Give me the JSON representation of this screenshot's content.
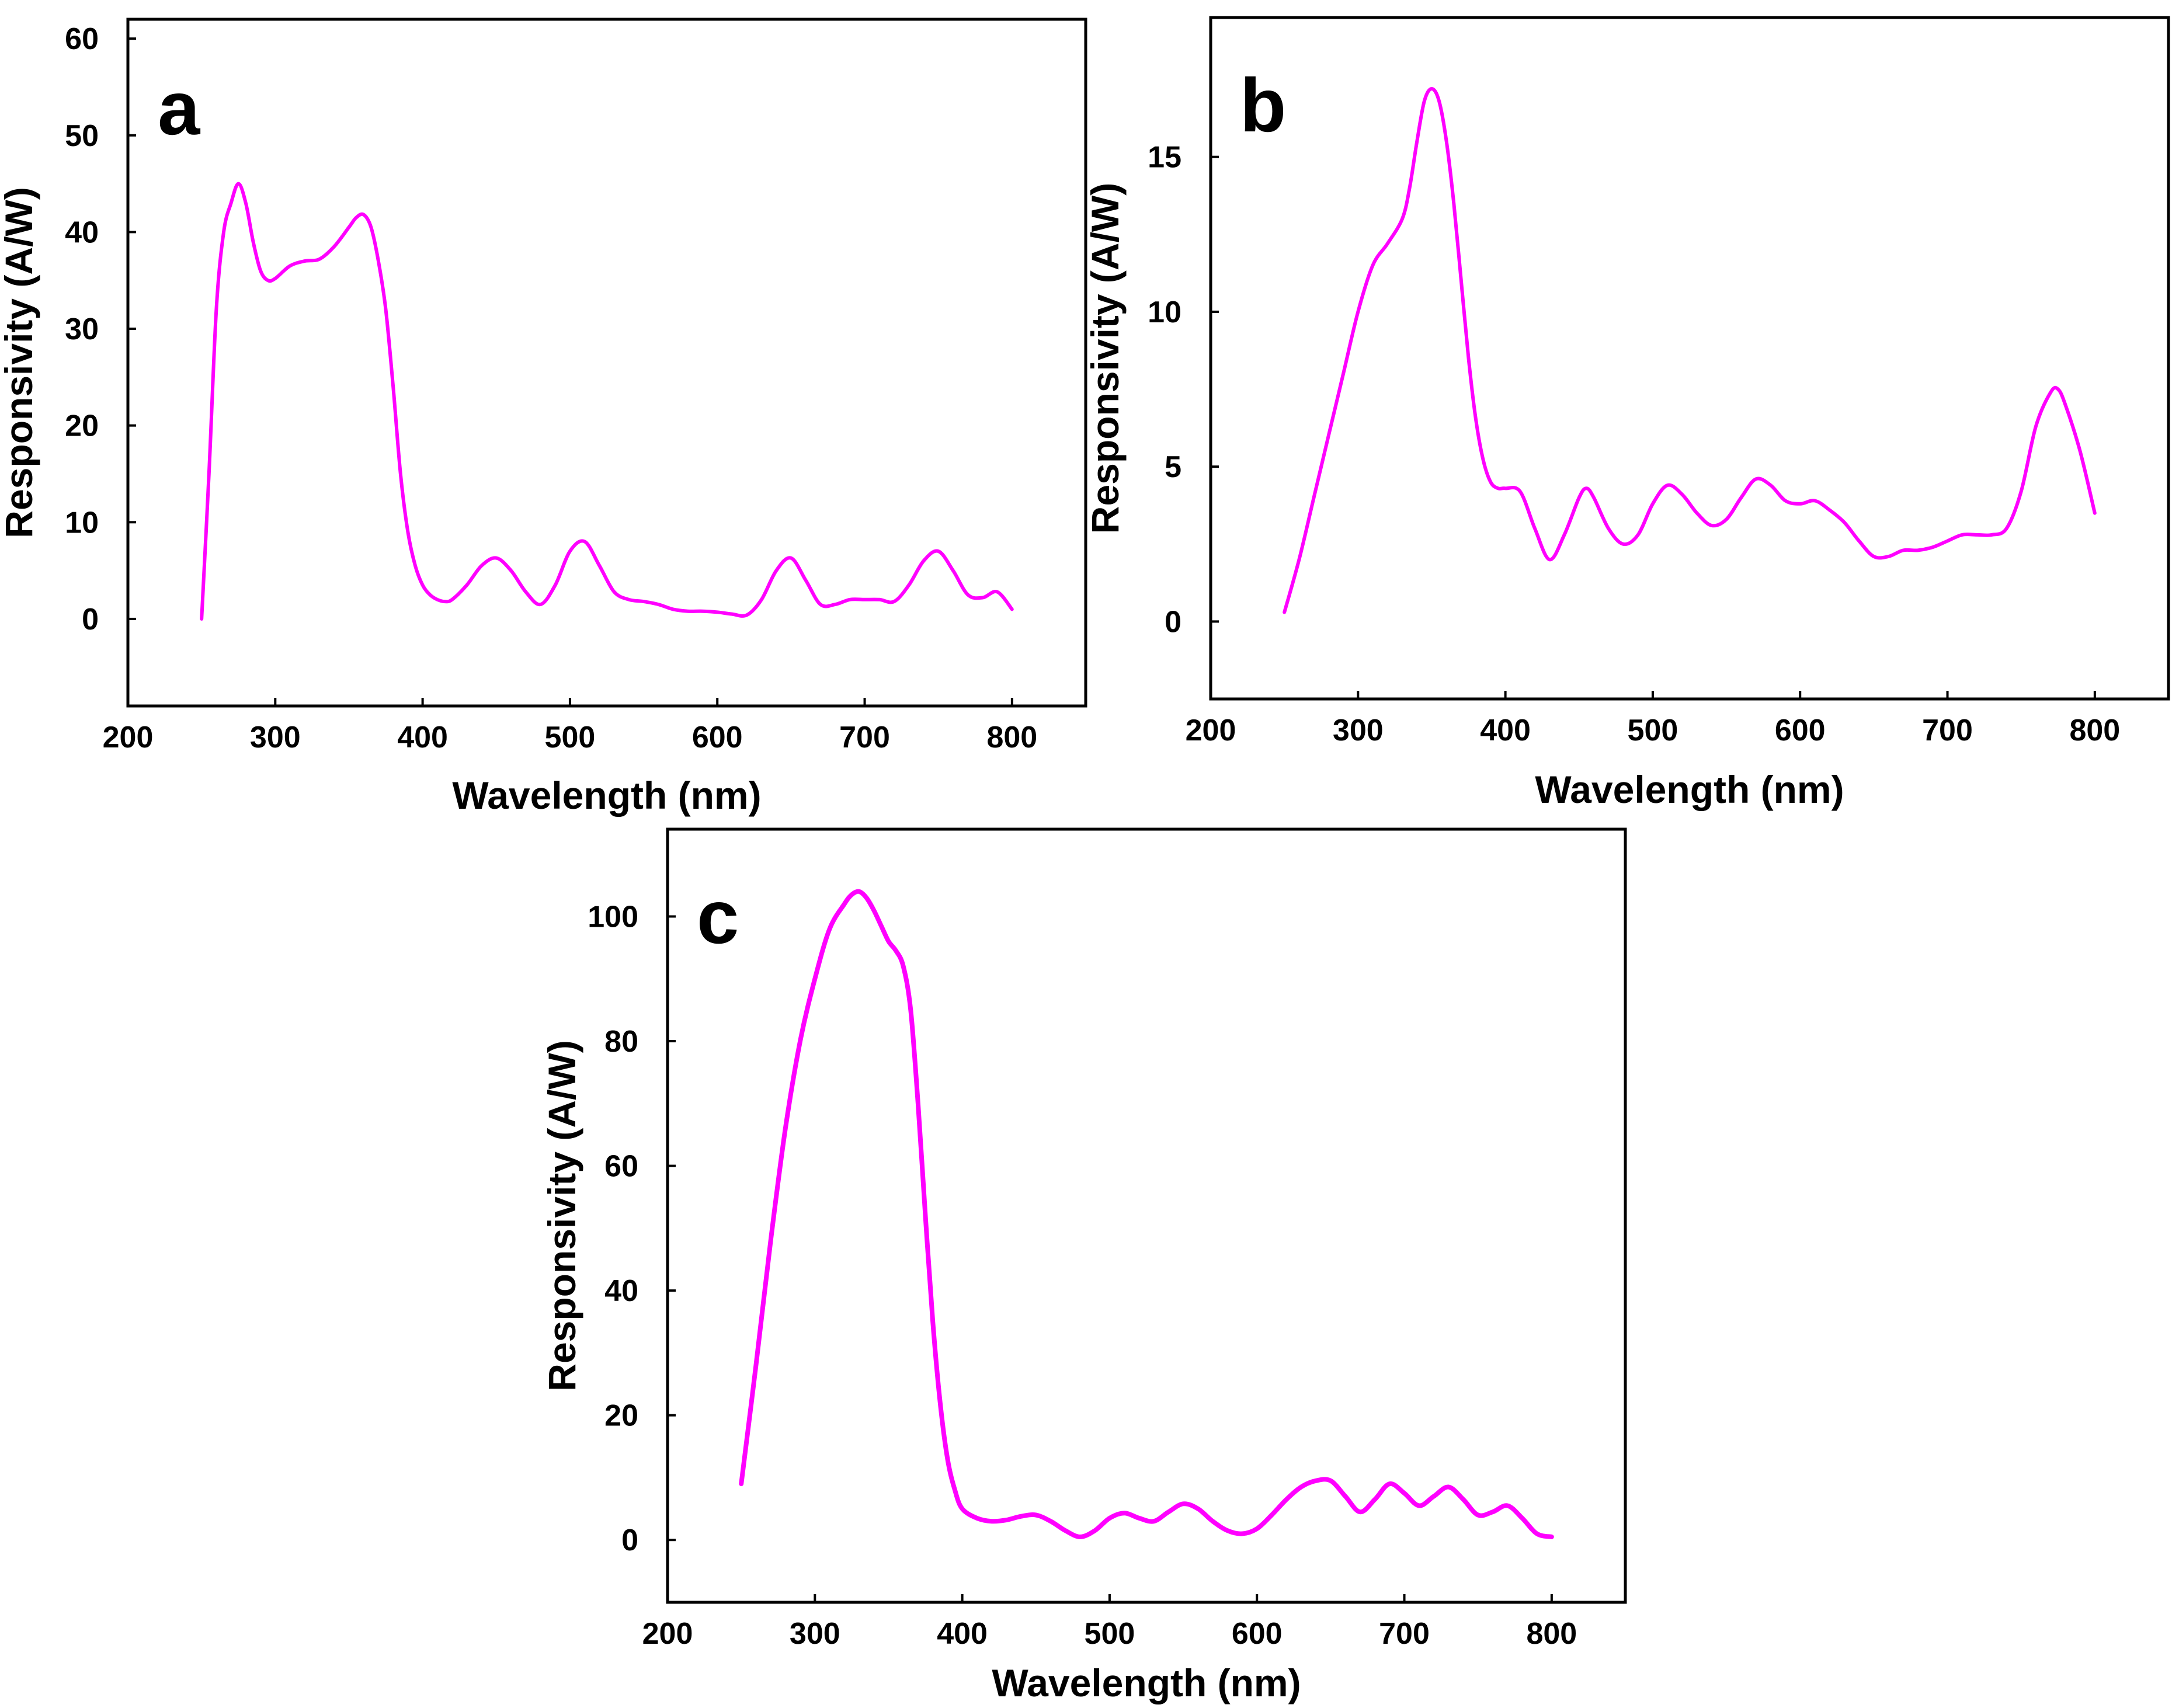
{
  "chart_data": [
    {
      "type": "line",
      "panel_label": "a",
      "xlabel": "Wavelength (nm)",
      "ylabel": "Responsivity (A/W)",
      "xlim": [
        200,
        850
      ],
      "ylim": [
        -9,
        62
      ],
      "xticks": [
        200,
        300,
        400,
        500,
        600,
        700,
        800
      ],
      "yticks": [
        0,
        10,
        20,
        30,
        40,
        50,
        60
      ],
      "grid": false,
      "color": "#ff00ff",
      "series": [
        {
          "name": "a",
          "x": [
            250,
            255,
            260,
            265,
            270,
            275,
            280,
            285,
            290,
            295,
            300,
            310,
            320,
            330,
            340,
            350,
            355,
            360,
            365,
            370,
            375,
            380,
            385,
            390,
            395,
            400,
            405,
            410,
            415,
            420,
            430,
            440,
            450,
            460,
            470,
            480,
            490,
            500,
            510,
            520,
            530,
            540,
            550,
            560,
            570,
            580,
            590,
            600,
            610,
            620,
            630,
            640,
            650,
            660,
            670,
            680,
            690,
            700,
            710,
            720,
            730,
            740,
            750,
            760,
            770,
            780,
            790,
            800
          ],
          "y": [
            0,
            15,
            32,
            40,
            43,
            45,
            43,
            39,
            36,
            35,
            35.2,
            36.5,
            37,
            37.2,
            38.5,
            40.5,
            41.5,
            41.8,
            40.5,
            37,
            32,
            24,
            15,
            9,
            5.5,
            3.5,
            2.5,
            2,
            1.8,
            2,
            3.5,
            5.5,
            6.3,
            5,
            2.8,
            1.5,
            3.5,
            7,
            8,
            5.5,
            2.8,
            2,
            1.8,
            1.5,
            1,
            0.8,
            0.8,
            0.7,
            0.5,
            0.4,
            2,
            5,
            6.3,
            4,
            1.5,
            1.5,
            2,
            2,
            2,
            1.8,
            3.5,
            6,
            7,
            5,
            2.5,
            2.2,
            2.8,
            1
          ]
        }
      ]
    },
    {
      "type": "line",
      "panel_label": "b",
      "xlabel": "Wavelength (nm)",
      "ylabel": "Responsivity (A/W)",
      "xlim": [
        200,
        850
      ],
      "ylim": [
        -2.5,
        19.5
      ],
      "xticks": [
        200,
        300,
        400,
        500,
        600,
        700,
        800
      ],
      "yticks": [
        0,
        5,
        10,
        15
      ],
      "grid": false,
      "color": "#ff00ff",
      "series": [
        {
          "name": "b",
          "x": [
            250,
            260,
            270,
            280,
            290,
            300,
            310,
            320,
            330,
            335,
            340,
            345,
            350,
            355,
            360,
            365,
            370,
            375,
            380,
            385,
            390,
            395,
            400,
            410,
            420,
            430,
            440,
            450,
            455,
            460,
            470,
            480,
            490,
            500,
            510,
            520,
            530,
            540,
            550,
            560,
            570,
            580,
            590,
            600,
            610,
            620,
            630,
            640,
            650,
            660,
            670,
            680,
            690,
            700,
            710,
            720,
            730,
            740,
            750,
            760,
            770,
            775,
            780,
            790,
            800
          ],
          "y": [
            0.3,
            2,
            4,
            6,
            8,
            10,
            11.5,
            12.2,
            13,
            14,
            15.5,
            16.8,
            17.2,
            16.8,
            15.5,
            13.5,
            11,
            8.5,
            6.5,
            5.2,
            4.5,
            4.3,
            4.3,
            4.2,
            3,
            2,
            2.8,
            4,
            4.3,
            4,
            3,
            2.5,
            2.8,
            3.8,
            4.4,
            4.1,
            3.5,
            3.1,
            3.3,
            4,
            4.6,
            4.4,
            3.9,
            3.8,
            3.9,
            3.6,
            3.2,
            2.6,
            2.1,
            2.1,
            2.3,
            2.3,
            2.4,
            2.6,
            2.8,
            2.8,
            2.8,
            3,
            4.2,
            6.3,
            7.4,
            7.5,
            7,
            5.5,
            3.5
          ]
        }
      ]
    },
    {
      "type": "line",
      "panel_label": "c",
      "xlabel": "Wavelength (nm)",
      "ylabel": "Responsivity (A/W)",
      "xlim": [
        200,
        850
      ],
      "ylim": [
        -10,
        114
      ],
      "xticks": [
        200,
        300,
        400,
        500,
        600,
        700,
        800
      ],
      "yticks": [
        0,
        20,
        40,
        60,
        80,
        100
      ],
      "grid": false,
      "color": "#ff00ff",
      "series": [
        {
          "name": "c",
          "x": [
            250,
            260,
            270,
            280,
            290,
            300,
            310,
            320,
            325,
            330,
            335,
            340,
            345,
            350,
            355,
            360,
            365,
            370,
            375,
            380,
            385,
            390,
            395,
            400,
            410,
            420,
            430,
            440,
            450,
            460,
            470,
            480,
            490,
            500,
            510,
            520,
            530,
            540,
            550,
            560,
            570,
            580,
            590,
            600,
            610,
            620,
            630,
            640,
            650,
            660,
            670,
            680,
            690,
            700,
            710,
            720,
            730,
            740,
            750,
            760,
            770,
            780,
            790,
            800
          ],
          "y": [
            9,
            28,
            48,
            66,
            80,
            90,
            98,
            102,
            103.5,
            104,
            103,
            101,
            98.5,
            96,
            94.5,
            92,
            85,
            70,
            52,
            35,
            22,
            13,
            8,
            5,
            3.5,
            3,
            3.2,
            3.8,
            4,
            3,
            1.5,
            0.5,
            1.5,
            3.5,
            4.3,
            3.5,
            3,
            4.5,
            5.8,
            5,
            3,
            1.5,
            1,
            1.8,
            4,
            6.5,
            8.5,
            9.5,
            9.5,
            7,
            4.5,
            6.5,
            9,
            7.5,
            5.5,
            7,
            8.5,
            6.5,
            4,
            4.5,
            5.5,
            3.5,
            1,
            0.5
          ]
        }
      ]
    }
  ]
}
